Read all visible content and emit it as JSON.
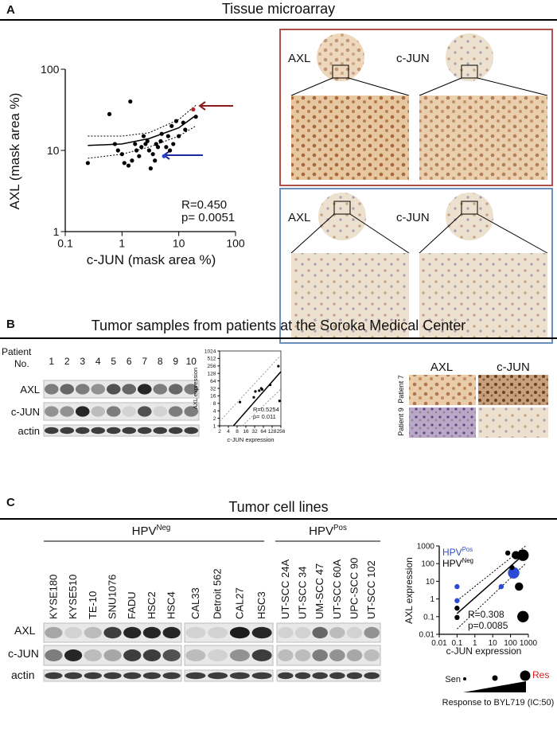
{
  "panel_a": {
    "label": "A",
    "title": "Tissue microarray",
    "images": [
      {
        "left": "AXL",
        "right": "c-JUN"
      },
      {
        "left": "AXL",
        "right": "c-JUN"
      }
    ]
  },
  "panel_b": {
    "label": "B",
    "title": "Tumor samples from patients at the Soroka Medical Center",
    "blot": {
      "header": [
        "Patient",
        "No."
      ],
      "lanes": [
        1,
        2,
        3,
        4,
        5,
        6,
        7,
        8,
        9,
        10
      ],
      "rows": [
        "AXL",
        "c-JUN",
        "actin"
      ]
    },
    "ihc": {
      "columns": [
        "AXL",
        "c-JUN"
      ],
      "rows": [
        "Patient 7",
        "Patient 9"
      ]
    }
  },
  "panel_c": {
    "label": "C",
    "title": "Tumor cell lines",
    "groups": [
      {
        "name": "HPV",
        "superscript": "Neg",
        "cell_lines": [
          "KYSE180",
          "KYSE510",
          "TE-10",
          "SNU1076",
          "FADU",
          "HSC2",
          "HSC4",
          "CAL33",
          "Detroit 562",
          "CAL27",
          "HSC3"
        ]
      },
      {
        "name": "HPV",
        "superscript": "Pos",
        "cell_lines": [
          "UT-SCC 24A",
          "UT-SCC 34",
          "UM-SCC 47",
          "UT-SCC 60A",
          "UPC-SCC 90",
          "UT-SCC 102"
        ]
      }
    ],
    "blot_rows": [
      "AXL",
      "c-JUN",
      "actin"
    ],
    "response_legend": {
      "low": "Sen",
      "high": "Res",
      "caption": "Response to BYL719 (IC:50)"
    }
  },
  "chart_data": [
    {
      "type": "scatter",
      "x_label": "c-JUN  (mask area %)",
      "y_label": "AXL (mask area %)",
      "log_scale": true,
      "log_base": 10,
      "xlim": [
        0.1,
        100
      ],
      "ylim": [
        1,
        100
      ],
      "xticks": [
        0.1,
        1,
        10,
        100
      ],
      "yticks": [
        1,
        10,
        100
      ],
      "series": [
        {
          "color": "#000000",
          "x": [
            0.25,
            0.6,
            0.75,
            0.85,
            1.0,
            1.1,
            1.3,
            1.5,
            1.4,
            1.7,
            1.8,
            2.0,
            2.2,
            2.4,
            2.6,
            2.8,
            3.0,
            3.2,
            3.5,
            3.8,
            4.0,
            4.3,
            4.8,
            5.0,
            6.0,
            6.5,
            7.0,
            7.5,
            8.0,
            9.0,
            10,
            12,
            13,
            20
          ],
          "values": [
            7,
            28,
            12,
            10,
            9,
            7,
            6.5,
            7.5,
            40,
            12,
            10,
            8.5,
            11,
            15,
            12,
            13,
            10,
            6,
            9,
            7.5,
            12,
            11,
            13,
            16,
            11,
            15,
            10,
            20,
            12,
            23,
            15,
            22,
            18,
            26
          ]
        },
        {
          "color": "#b0282a",
          "x": [
            18
          ],
          "values": [
            32
          ]
        },
        {
          "color": "#2545d8",
          "x": [
            5.5
          ],
          "values": [
            8.5
          ]
        }
      ],
      "fit": {
        "x": [
          0.25,
          1,
          3,
          10,
          20
        ],
        "values": [
          11.5,
          12,
          14,
          19,
          27
        ],
        "upper": [
          15,
          15,
          16.5,
          24,
          36
        ],
        "lower": [
          8,
          9,
          11,
          15,
          20
        ]
      },
      "annotations": [
        "R=0.450",
        "p= 0.0051"
      ]
    },
    {
      "type": "scatter",
      "x_label": "c-JUN expression",
      "y_label": "AXL expression",
      "log_scale": true,
      "log_base": 2,
      "xlim": [
        2,
        256
      ],
      "ylim": [
        1,
        1024
      ],
      "xticks": [
        2,
        4,
        8,
        16,
        32,
        64,
        128,
        256
      ],
      "yticks": [
        1,
        2,
        4,
        8,
        16,
        32,
        64,
        128,
        256,
        512,
        1024
      ],
      "series": [
        {
          "color": "#000000",
          "x": [
            10,
            30,
            34,
            46,
            54,
            58,
            110,
            210,
            230
          ],
          "values": [
            9,
            14,
            24,
            26,
            32,
            29,
            44,
            250,
            10
          ]
        }
      ],
      "fit": {
        "x": [
          6,
          256
        ],
        "values": [
          1,
          150
        ],
        "upper": [
          1.5,
          700
        ],
        "lower": [
          1,
          30
        ],
        "upper_x": [
          2,
          256
        ],
        "lower_x": [
          12,
          256
        ]
      },
      "annotations": [
        "R=0.5254",
        "p= 0.011"
      ]
    },
    {
      "type": "scatter",
      "x_label": "c-JUN expression",
      "y_label": "AXL expression",
      "log_scale": true,
      "log_base": 10,
      "xlim": [
        0.01,
        1000
      ],
      "ylim": [
        0.01,
        1000
      ],
      "xticks": [
        0.01,
        0.1,
        1,
        10,
        100,
        1000
      ],
      "yticks": [
        0.01,
        0.1,
        1,
        10,
        100,
        1000
      ],
      "series": [
        {
          "name": "HPV",
          "superscript": "Pos",
          "color": "#2b4bd6",
          "x": [
            0.1,
            0.1,
            30,
            150
          ],
          "values": [
            5,
            0.8,
            5,
            30
          ],
          "sizes": [
            1,
            1,
            1,
            3
          ]
        },
        {
          "name": "HPV",
          "superscript": "Neg",
          "color": "#000000",
          "x": [
            0.1,
            0.1,
            70,
            200,
            500,
            500,
            300,
            120
          ],
          "values": [
            0.3,
            0.09,
            400,
            300,
            300,
            0.1,
            5,
            60
          ],
          "sizes": [
            1,
            1,
            1,
            2,
            3,
            3,
            2,
            1
          ]
        }
      ],
      "fit": {
        "x": [
          0.1,
          700
        ],
        "values": [
          0.15,
          400
        ],
        "upper": [
          0.8,
          1000
        ],
        "lower": [
          0.02,
          100
        ]
      },
      "annotations": [
        "R=0.308",
        "p=0.0085"
      ]
    }
  ]
}
